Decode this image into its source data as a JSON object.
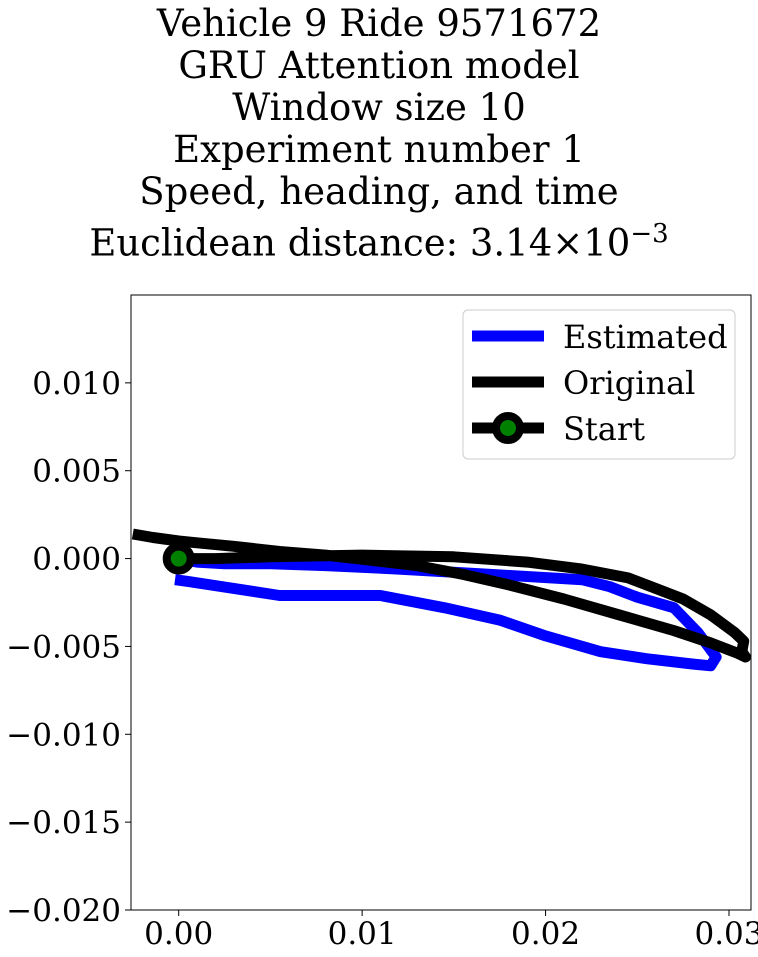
{
  "chart_data": {
    "type": "line",
    "title_lines": [
      "Vehicle 9 Ride 9571672",
      "GRU Attention model",
      "Window size 10",
      "Experiment number 1",
      "Speed, heading, and time"
    ],
    "title_distance_prefix": "Euclidean distance: 3.14",
    "title_distance_times": "×10",
    "title_distance_exponent": "−3",
    "xlabel": "",
    "ylabel": "",
    "xlim": [
      -0.0026,
      0.0312
    ],
    "ylim": [
      -0.02,
      0.015
    ],
    "x_ticks": [
      0.0,
      0.01,
      0.02,
      0.03
    ],
    "x_tick_labels": [
      "0.00",
      "0.01",
      "0.02",
      "0.03"
    ],
    "y_ticks": [
      0.01,
      0.005,
      0.0,
      -0.005,
      -0.01,
      -0.015,
      -0.02
    ],
    "y_tick_labels": [
      "0.010",
      "0.005",
      "0.000",
      "−0.005",
      "−0.010",
      "−0.015",
      "−0.020"
    ],
    "grid": false,
    "legend_position": "top-right",
    "series": [
      {
        "name": "Estimated",
        "color": "#0000ff",
        "x": [
          0.0,
          0.001,
          0.0025,
          0.005,
          0.008,
          0.012,
          0.017,
          0.022,
          0.0235,
          0.025,
          0.027,
          0.0283,
          0.0293,
          0.029,
          0.028,
          0.0255,
          0.023,
          0.02,
          0.0175,
          0.0145,
          0.011,
          0.0085,
          0.0055,
          0.003,
          0.0005,
          -0.0002
        ],
        "y": [
          0.0,
          -0.0002,
          -0.0003,
          -0.0003,
          -0.0004,
          -0.0006,
          -0.0009,
          -0.0012,
          -0.0016,
          -0.0022,
          -0.0028,
          -0.0042,
          -0.0056,
          -0.0061,
          -0.006,
          -0.0057,
          -0.0053,
          -0.0044,
          -0.0035,
          -0.0028,
          -0.0021,
          -0.0021,
          -0.0021,
          -0.0017,
          -0.0013,
          -0.0012
        ]
      },
      {
        "name": "Original",
        "color": "#000000",
        "x": [
          0.0,
          0.002,
          0.005,
          0.01,
          0.015,
          0.019,
          0.022,
          0.0245,
          0.026,
          0.0275,
          0.029,
          0.0303,
          0.0308,
          0.0307,
          0.0309,
          0.0305,
          0.029,
          0.027,
          0.024,
          0.021,
          0.018,
          0.0155,
          0.013,
          0.0105,
          0.008,
          0.0055,
          0.003,
          0.001,
          0.0,
          -0.0014,
          -0.0025
        ],
        "y": [
          0.0,
          0.0,
          0.0001,
          0.0002,
          0.0001,
          -0.0002,
          -0.0006,
          -0.0011,
          -0.0017,
          -0.0023,
          -0.0032,
          -0.0042,
          -0.0047,
          -0.0053,
          -0.0056,
          -0.0054,
          -0.0048,
          -0.0041,
          -0.0032,
          -0.0023,
          -0.0015,
          -0.0009,
          -0.0004,
          -0.0001,
          0.0002,
          0.0004,
          0.0007,
          0.0009,
          0.001,
          0.0012,
          0.0014
        ]
      }
    ],
    "start_marker": {
      "name": "Start",
      "x": 0.0,
      "y": 0.0,
      "edge_color": "#000000",
      "face_color": "#008000"
    }
  }
}
